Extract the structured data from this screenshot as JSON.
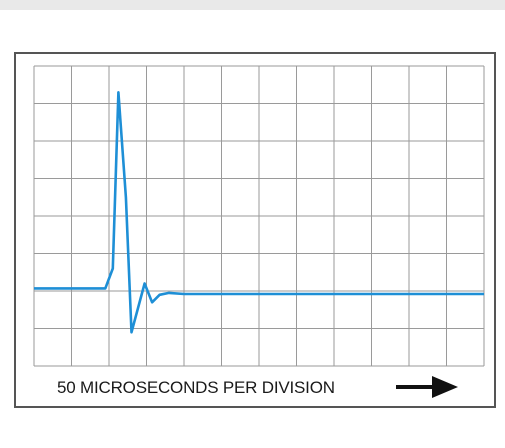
{
  "chart_data": {
    "type": "line",
    "title": "",
    "xlabel": "50 MICROSECONDS PER DIVISION",
    "ylabel": "",
    "xlim": [
      0,
      12
    ],
    "ylim": [
      0,
      8
    ],
    "grid": true,
    "grid_divisions": {
      "x": 12,
      "y": 8
    },
    "series": [
      {
        "x": [
          0,
          1.9,
          2.1,
          2.25,
          2.45,
          2.6,
          2.95,
          3.15,
          3.35,
          3.6,
          4.0,
          12.0
        ],
        "y": [
          2.07,
          2.07,
          2.6,
          7.3,
          4.5,
          0.9,
          2.2,
          1.7,
          1.9,
          1.95,
          1.92,
          1.92
        ]
      }
    ]
  },
  "colors": {
    "trace": "#1e8fd6",
    "grid": "#9a9a9a",
    "frame": "#555555",
    "arrow": "#111111",
    "band": "#e9e9e9"
  }
}
